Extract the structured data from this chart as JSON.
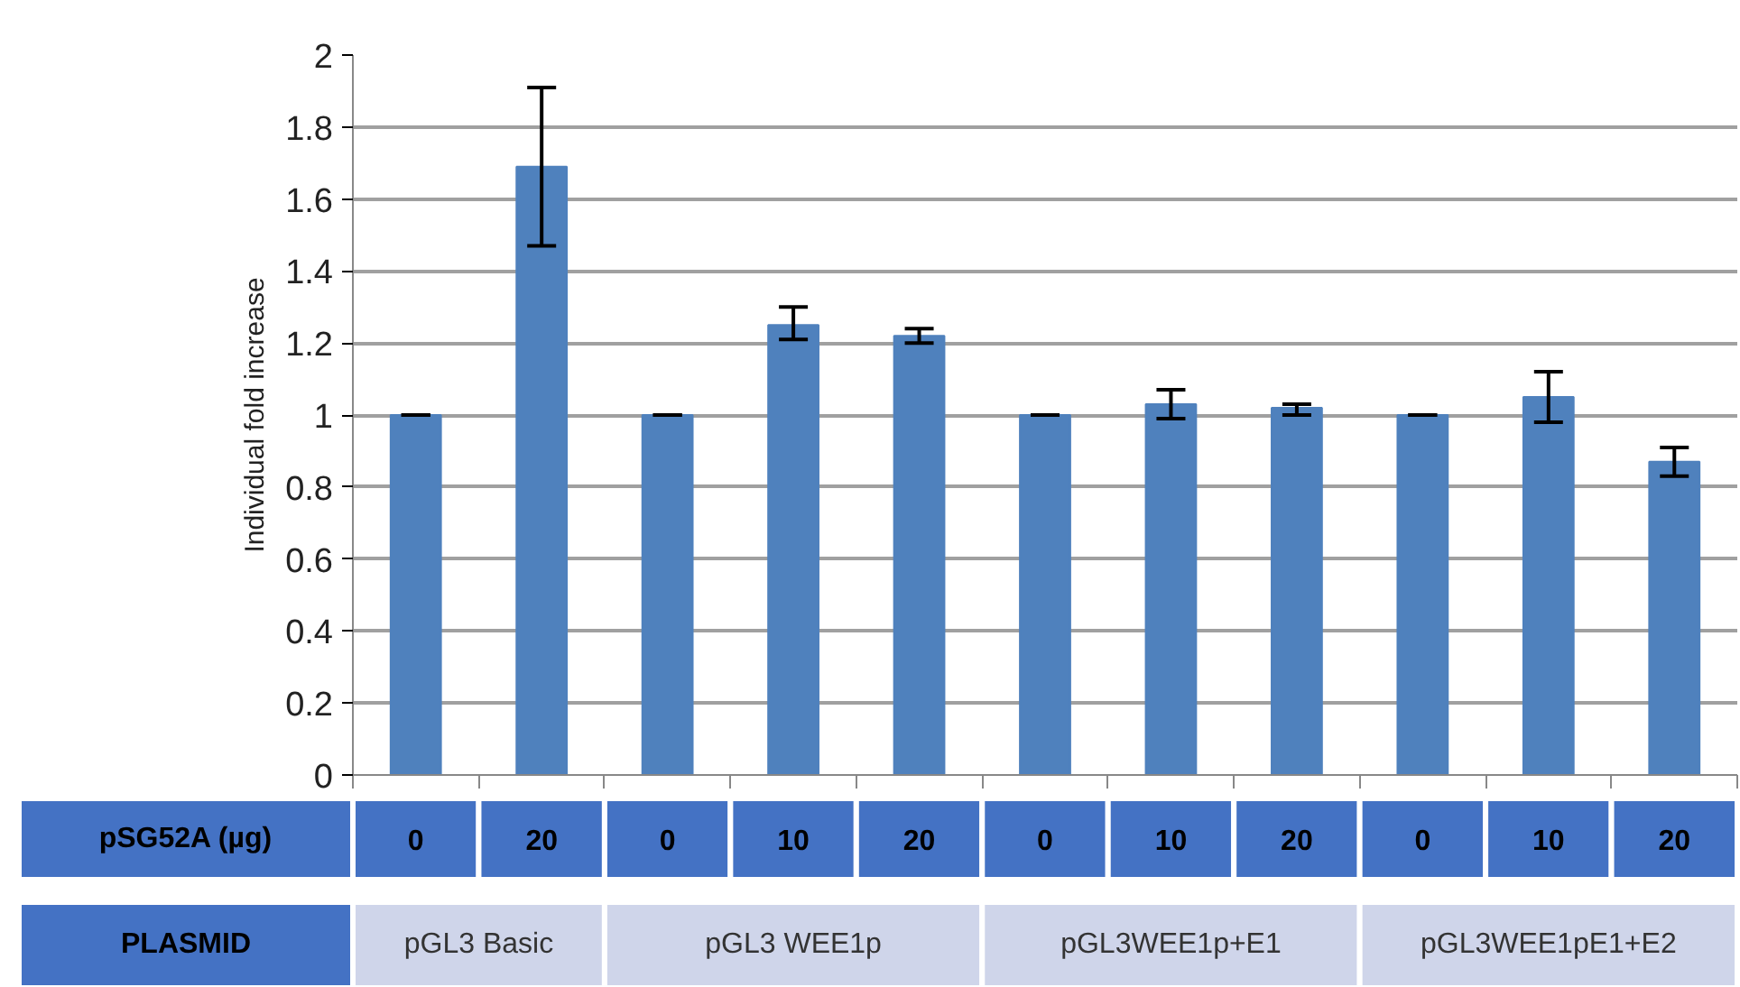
{
  "chart_data": {
    "type": "bar",
    "ylabel": "Individual fold increase",
    "xlabel": "pSG52A (µg)",
    "categories": [
      "0",
      "20",
      "0",
      "10",
      "20",
      "0",
      "10",
      "20",
      "0",
      "10",
      "20"
    ],
    "values": [
      1,
      1.69,
      1,
      1.25,
      1.22,
      1,
      1.03,
      1.02,
      1,
      1.05,
      0.87
    ],
    "errors": [
      0,
      [
        1.47,
        1.91
      ],
      0,
      [
        1.21,
        1.3
      ],
      [
        1.2,
        1.24
      ],
      0,
      [
        0.99,
        1.07
      ],
      [
        1.0,
        1.03
      ],
      0,
      [
        0.98,
        1.12
      ],
      [
        0.83,
        0.91
      ]
    ],
    "color": "#4f81bd",
    "ylim": [
      0,
      2
    ],
    "yticks": [
      0,
      0.2,
      0.4,
      0.6,
      0.8,
      1,
      1.2,
      1.4,
      1.6,
      1.8,
      2
    ],
    "grid": "y",
    "annotations": [
      "PLASMID",
      "pGL3 Basic",
      "pGL3 WEE1p",
      "pGL3WEE1p+E1",
      "pGL3WEE1pE1+E2"
    ]
  }
}
